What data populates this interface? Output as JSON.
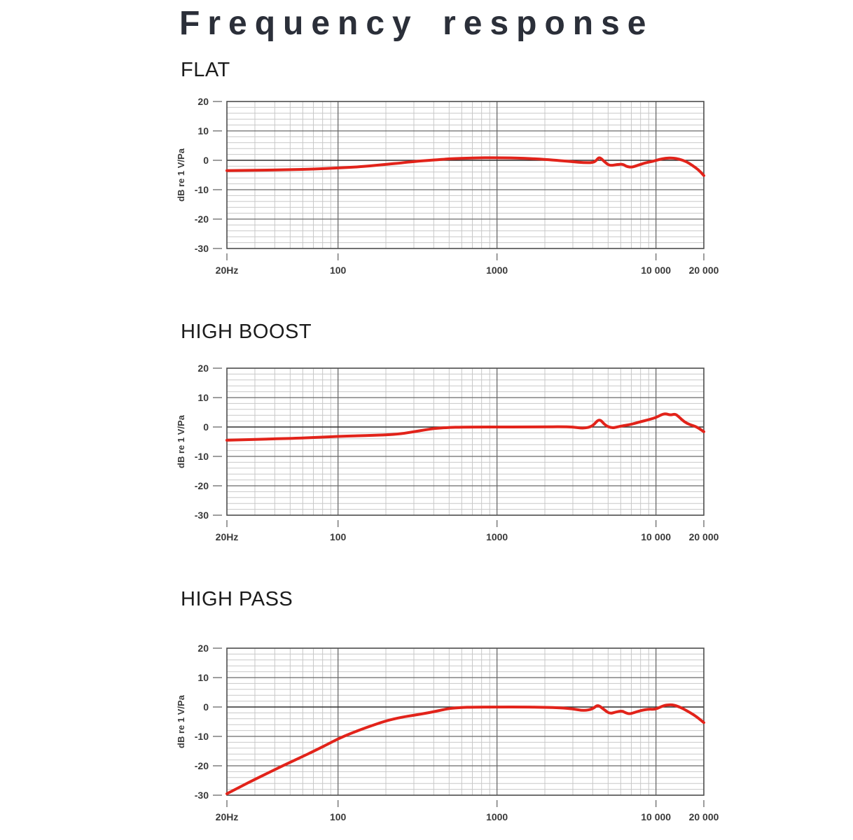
{
  "page": {
    "title": "Frequency response"
  },
  "colors": {
    "curve": "#e2231a",
    "grid_minor": "#c8c8c8",
    "grid_major": "#6a6a6a",
    "axis_zero": "#2f2f2f",
    "border": "#4d4d4d",
    "tick_text": "#3a3a3a",
    "title_text": "#2b2f39",
    "heading_text": "#1c1c1c"
  },
  "chart_data": [
    {
      "type": "line",
      "title": "FLAT",
      "xlabel": "",
      "ylabel": "dB re 1 V/Pa",
      "x_scale": "log",
      "xlim": [
        20,
        20000
      ],
      "ylim": [
        -30,
        20
      ],
      "grid": {
        "minor_step_db": 2,
        "major_step_db": 10,
        "minor_x_per_decade": true
      },
      "yticks": [
        {
          "value": 20,
          "label": "20"
        },
        {
          "value": 10,
          "label": "10"
        },
        {
          "value": 0,
          "label": "0"
        },
        {
          "value": -10,
          "label": "-10"
        },
        {
          "value": -20,
          "label": "-20"
        },
        {
          "value": -30,
          "label": "-30"
        }
      ],
      "xticks": [
        {
          "value": 20,
          "label": "20Hz"
        },
        {
          "value": 100,
          "label": "100"
        },
        {
          "value": 1000,
          "label": "1000"
        },
        {
          "value": 10000,
          "label": "10 000"
        },
        {
          "value": 20000,
          "label": "20 000"
        }
      ],
      "series": [
        {
          "name": "response",
          "points": [
            [
              20,
              -3.5
            ],
            [
              30,
              -3.4
            ],
            [
              50,
              -3.2
            ],
            [
              70,
              -3.0
            ],
            [
              100,
              -2.6
            ],
            [
              130,
              -2.3
            ],
            [
              160,
              -1.9
            ],
            [
              200,
              -1.4
            ],
            [
              250,
              -0.9
            ],
            [
              300,
              -0.4
            ],
            [
              400,
              0.1
            ],
            [
              500,
              0.5
            ],
            [
              700,
              0.8
            ],
            [
              1000,
              0.9
            ],
            [
              1500,
              0.7
            ],
            [
              2000,
              0.3
            ],
            [
              2500,
              -0.1
            ],
            [
              3000,
              -0.5
            ],
            [
              3500,
              -0.8
            ],
            [
              4000,
              -0.8
            ],
            [
              4200,
              -0.2
            ],
            [
              4400,
              1.2
            ],
            [
              4700,
              -0.3
            ],
            [
              5100,
              -1.9
            ],
            [
              5700,
              -1.4
            ],
            [
              6200,
              -1.3
            ],
            [
              6500,
              -2.1
            ],
            [
              7000,
              -2.4
            ],
            [
              7600,
              -1.8
            ],
            [
              8500,
              -0.9
            ],
            [
              9500,
              -0.4
            ],
            [
              10500,
              0.3
            ],
            [
              11500,
              0.7
            ],
            [
              12800,
              0.8
            ],
            [
              14000,
              0.4
            ],
            [
              15500,
              -0.4
            ],
            [
              17000,
              -1.8
            ],
            [
              18500,
              -3.2
            ],
            [
              20000,
              -5.2
            ]
          ]
        }
      ]
    },
    {
      "type": "line",
      "title": "HIGH BOOST",
      "xlabel": "",
      "ylabel": "dB re 1 V/Pa",
      "x_scale": "log",
      "xlim": [
        20,
        20000
      ],
      "ylim": [
        -30,
        20
      ],
      "grid": {
        "minor_step_db": 2,
        "major_step_db": 10,
        "minor_x_per_decade": true
      },
      "yticks": [
        {
          "value": 20,
          "label": "20"
        },
        {
          "value": 10,
          "label": "10"
        },
        {
          "value": 0,
          "label": "0"
        },
        {
          "value": -10,
          "label": "-10"
        },
        {
          "value": -20,
          "label": "-20"
        },
        {
          "value": -30,
          "label": "-30"
        }
      ],
      "xticks": [
        {
          "value": 20,
          "label": "20Hz"
        },
        {
          "value": 100,
          "label": "100"
        },
        {
          "value": 1000,
          "label": "1000"
        },
        {
          "value": 10000,
          "label": "10 000"
        },
        {
          "value": 20000,
          "label": "20 000"
        }
      ],
      "series": [
        {
          "name": "response",
          "points": [
            [
              20,
              -4.5
            ],
            [
              30,
              -4.2
            ],
            [
              50,
              -3.9
            ],
            [
              70,
              -3.6
            ],
            [
              100,
              -3.2
            ],
            [
              130,
              -3.0
            ],
            [
              170,
              -2.8
            ],
            [
              200,
              -2.7
            ],
            [
              250,
              -2.3
            ],
            [
              300,
              -1.6
            ],
            [
              350,
              -1.0
            ],
            [
              400,
              -0.5
            ],
            [
              500,
              -0.15
            ],
            [
              600,
              -0.05
            ],
            [
              800,
              0
            ],
            [
              1000,
              0
            ],
            [
              1500,
              0
            ],
            [
              2000,
              0.05
            ],
            [
              2500,
              0.1
            ],
            [
              3000,
              0
            ],
            [
              3500,
              -0.5
            ],
            [
              4000,
              0.2
            ],
            [
              4400,
              3.0
            ],
            [
              4800,
              0.5
            ],
            [
              5300,
              -0.4
            ],
            [
              5800,
              0.1
            ],
            [
              6300,
              0.5
            ],
            [
              7000,
              0.9
            ],
            [
              8000,
              1.8
            ],
            [
              9000,
              2.5
            ],
            [
              10000,
              3.2
            ],
            [
              11300,
              4.7
            ],
            [
              12300,
              4.0
            ],
            [
              13200,
              4.5
            ],
            [
              14000,
              3.4
            ],
            [
              15000,
              1.8
            ],
            [
              16500,
              0.7
            ],
            [
              18000,
              0.1
            ],
            [
              20000,
              -1.6
            ]
          ]
        }
      ]
    },
    {
      "type": "line",
      "title": "HIGH PASS",
      "xlabel": "",
      "ylabel": "dB re 1 V/Pa",
      "x_scale": "log",
      "xlim": [
        20,
        20000
      ],
      "ylim": [
        -30,
        20
      ],
      "grid": {
        "minor_step_db": 2,
        "major_step_db": 10,
        "minor_x_per_decade": true
      },
      "yticks": [
        {
          "value": 20,
          "label": "20"
        },
        {
          "value": 10,
          "label": "10"
        },
        {
          "value": 0,
          "label": "0"
        },
        {
          "value": -10,
          "label": "-10"
        },
        {
          "value": -20,
          "label": "-20"
        },
        {
          "value": -30,
          "label": "-30"
        }
      ],
      "xticks": [
        {
          "value": 20,
          "label": "20Hz"
        },
        {
          "value": 100,
          "label": "100"
        },
        {
          "value": 1000,
          "label": "1000"
        },
        {
          "value": 10000,
          "label": "10 000"
        },
        {
          "value": 20000,
          "label": "20 000"
        }
      ],
      "series": [
        {
          "name": "response",
          "points": [
            [
              20,
              -29.5
            ],
            [
              25,
              -26.8
            ],
            [
              30,
              -24.6
            ],
            [
              40,
              -21.3
            ],
            [
              50,
              -18.8
            ],
            [
              60,
              -16.8
            ],
            [
              70,
              -15.1
            ],
            [
              85,
              -12.8
            ],
            [
              100,
              -10.8
            ],
            [
              120,
              -9.0
            ],
            [
              150,
              -7.0
            ],
            [
              200,
              -4.7
            ],
            [
              250,
              -3.5
            ],
            [
              300,
              -2.8
            ],
            [
              350,
              -2.2
            ],
            [
              400,
              -1.6
            ],
            [
              450,
              -1.0
            ],
            [
              500,
              -0.5
            ],
            [
              600,
              -0.15
            ],
            [
              700,
              -0.05
            ],
            [
              1000,
              0
            ],
            [
              1500,
              0
            ],
            [
              2000,
              -0.1
            ],
            [
              2500,
              -0.3
            ],
            [
              3000,
              -0.6
            ],
            [
              3500,
              -1.3
            ],
            [
              4000,
              -0.7
            ],
            [
              4300,
              0.8
            ],
            [
              4700,
              -0.8
            ],
            [
              5100,
              -2.3
            ],
            [
              5600,
              -1.7
            ],
            [
              6100,
              -1.3
            ],
            [
              6400,
              -1.9
            ],
            [
              6800,
              -2.4
            ],
            [
              7300,
              -1.9
            ],
            [
              8000,
              -1.2
            ],
            [
              9000,
              -0.7
            ],
            [
              9800,
              -0.8
            ],
            [
              10500,
              -0.2
            ],
            [
              11300,
              0.6
            ],
            [
              12500,
              0.8
            ],
            [
              13500,
              0.4
            ],
            [
              15000,
              -0.7
            ],
            [
              16500,
              -2.0
            ],
            [
              18000,
              -3.3
            ],
            [
              20000,
              -5.3
            ]
          ]
        }
      ]
    }
  ]
}
